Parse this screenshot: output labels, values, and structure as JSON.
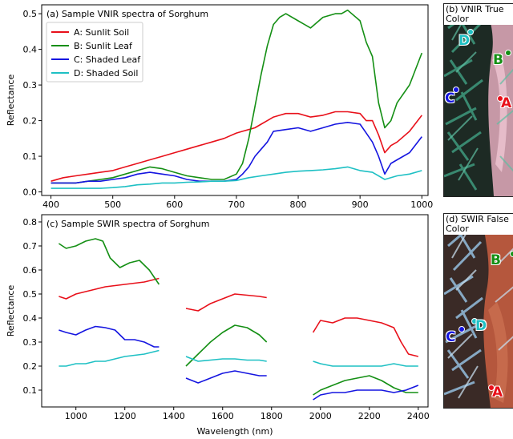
{
  "colors": {
    "A": "#e8101a",
    "B": "#148f14",
    "C": "#1515e0",
    "D": "#1ec0c4"
  },
  "chart_data": [
    {
      "type": "line",
      "panel": "a",
      "title": "(a) Sample VNIR spectra of Sorghum",
      "xlabel": "",
      "ylabel": "Reflectance",
      "xlim": [
        385,
        1010
      ],
      "ylim": [
        -0.01,
        0.525
      ],
      "xticks": [
        400,
        500,
        600,
        700,
        800,
        900,
        1000
      ],
      "yticks": [
        0.0,
        0.1,
        0.2,
        0.3,
        0.4,
        0.5
      ],
      "legend": "top-left",
      "series": [
        {
          "key": "A",
          "name": "A: Sunlit Soil",
          "x": [
            400,
            420,
            440,
            460,
            480,
            500,
            520,
            540,
            560,
            580,
            600,
            620,
            640,
            660,
            680,
            700,
            710,
            720,
            730,
            740,
            750,
            760,
            770,
            780,
            790,
            800,
            820,
            840,
            860,
            880,
            900,
            910,
            920,
            930,
            940,
            950,
            960,
            980,
            1000
          ],
          "y": [
            0.03,
            0.04,
            0.045,
            0.05,
            0.055,
            0.06,
            0.07,
            0.08,
            0.09,
            0.1,
            0.11,
            0.12,
            0.13,
            0.14,
            0.15,
            0.165,
            0.17,
            0.175,
            0.18,
            0.19,
            0.2,
            0.21,
            0.215,
            0.22,
            0.22,
            0.22,
            0.21,
            0.215,
            0.225,
            0.225,
            0.22,
            0.2,
            0.2,
            0.16,
            0.11,
            0.13,
            0.14,
            0.17,
            0.215
          ]
        },
        {
          "key": "B",
          "name": "B: Sunlit Leaf",
          "x": [
            400,
            420,
            440,
            460,
            480,
            500,
            520,
            540,
            560,
            580,
            600,
            620,
            640,
            660,
            680,
            700,
            710,
            720,
            730,
            740,
            750,
            760,
            770,
            780,
            800,
            820,
            840,
            860,
            870,
            880,
            900,
            910,
            920,
            930,
            940,
            950,
            960,
            980,
            1000
          ],
          "y": [
            0.025,
            0.025,
            0.025,
            0.03,
            0.035,
            0.04,
            0.05,
            0.06,
            0.07,
            0.065,
            0.055,
            0.045,
            0.04,
            0.035,
            0.035,
            0.05,
            0.08,
            0.15,
            0.24,
            0.33,
            0.41,
            0.47,
            0.49,
            0.5,
            0.48,
            0.46,
            0.49,
            0.5,
            0.5,
            0.51,
            0.48,
            0.42,
            0.38,
            0.25,
            0.18,
            0.2,
            0.25,
            0.3,
            0.39
          ]
        },
        {
          "key": "C",
          "name": "C: Shaded Leaf",
          "x": [
            400,
            420,
            440,
            460,
            480,
            500,
            520,
            540,
            560,
            580,
            600,
            620,
            640,
            660,
            680,
            700,
            710,
            720,
            730,
            740,
            750,
            760,
            780,
            800,
            820,
            840,
            860,
            880,
            900,
            910,
            920,
            930,
            940,
            950,
            960,
            980,
            1000
          ],
          "y": [
            0.025,
            0.025,
            0.025,
            0.03,
            0.03,
            0.035,
            0.04,
            0.05,
            0.055,
            0.05,
            0.045,
            0.035,
            0.03,
            0.03,
            0.03,
            0.035,
            0.05,
            0.07,
            0.1,
            0.12,
            0.14,
            0.17,
            0.175,
            0.18,
            0.17,
            0.18,
            0.19,
            0.195,
            0.19,
            0.165,
            0.14,
            0.1,
            0.05,
            0.08,
            0.09,
            0.11,
            0.155
          ]
        },
        {
          "key": "D",
          "name": "D: Shaded Soil",
          "x": [
            400,
            420,
            440,
            460,
            480,
            500,
            520,
            540,
            560,
            580,
            600,
            620,
            640,
            660,
            680,
            700,
            720,
            740,
            760,
            780,
            800,
            820,
            840,
            860,
            880,
            900,
            920,
            940,
            960,
            980,
            1000
          ],
          "y": [
            0.01,
            0.01,
            0.01,
            0.01,
            0.01,
            0.012,
            0.015,
            0.02,
            0.022,
            0.025,
            0.025,
            0.027,
            0.028,
            0.03,
            0.03,
            0.032,
            0.04,
            0.045,
            0.05,
            0.055,
            0.058,
            0.06,
            0.062,
            0.065,
            0.07,
            0.06,
            0.055,
            0.035,
            0.045,
            0.05,
            0.06
          ]
        }
      ]
    },
    {
      "type": "line",
      "panel": "c",
      "title": "(c) Sample SWIR spectra of Sorghum",
      "xlabel": "Wavelength (nm)",
      "ylabel": "Reflectance",
      "xlim": [
        860,
        2440
      ],
      "ylim": [
        0.03,
        0.83
      ],
      "xticks": [
        1000,
        1200,
        1400,
        1600,
        1800,
        2000,
        2200,
        2400
      ],
      "yticks": [
        0.1,
        0.2,
        0.3,
        0.4,
        0.5,
        0.6,
        0.7,
        0.8
      ],
      "series": [
        {
          "key": "A",
          "name": "A: Sunlit Soil",
          "segments": [
            {
              "x": [
                930,
                960,
                1000,
                1040,
                1080,
                1120,
                1160,
                1200,
                1240,
                1280,
                1320,
                1340
              ],
              "y": [
                0.49,
                0.48,
                0.5,
                0.51,
                0.52,
                0.53,
                0.535,
                0.54,
                0.545,
                0.55,
                0.56,
                0.565
              ]
            },
            {
              "x": [
                1450,
                1500,
                1550,
                1600,
                1650,
                1700,
                1750,
                1780
              ],
              "y": [
                0.44,
                0.43,
                0.46,
                0.48,
                0.5,
                0.495,
                0.49,
                0.485
              ]
            },
            {
              "x": [
                1970,
                2000,
                2050,
                2100,
                2150,
                2200,
                2250,
                2300,
                2330,
                2360,
                2400
              ],
              "y": [
                0.34,
                0.39,
                0.38,
                0.4,
                0.4,
                0.39,
                0.38,
                0.36,
                0.3,
                0.25,
                0.24
              ]
            }
          ]
        },
        {
          "key": "B",
          "name": "B: Sunlit Leaf",
          "segments": [
            {
              "x": [
                930,
                960,
                1000,
                1040,
                1080,
                1110,
                1140,
                1180,
                1220,
                1260,
                1300,
                1340
              ],
              "y": [
                0.71,
                0.69,
                0.7,
                0.72,
                0.73,
                0.72,
                0.65,
                0.61,
                0.63,
                0.64,
                0.6,
                0.54
              ]
            },
            {
              "x": [
                1450,
                1500,
                1550,
                1600,
                1650,
                1700,
                1750,
                1780
              ],
              "y": [
                0.2,
                0.25,
                0.3,
                0.34,
                0.37,
                0.36,
                0.33,
                0.3
              ]
            },
            {
              "x": [
                1970,
                2000,
                2050,
                2100,
                2150,
                2200,
                2250,
                2300,
                2350,
                2400
              ],
              "y": [
                0.08,
                0.1,
                0.12,
                0.14,
                0.15,
                0.16,
                0.14,
                0.11,
                0.09,
                0.09
              ]
            }
          ]
        },
        {
          "key": "C",
          "name": "C: Shaded Leaf",
          "segments": [
            {
              "x": [
                930,
                960,
                1000,
                1040,
                1080,
                1120,
                1160,
                1200,
                1240,
                1280,
                1320,
                1340
              ],
              "y": [
                0.35,
                0.34,
                0.33,
                0.35,
                0.365,
                0.36,
                0.35,
                0.31,
                0.31,
                0.3,
                0.28,
                0.28
              ]
            },
            {
              "x": [
                1450,
                1500,
                1550,
                1600,
                1650,
                1700,
                1750,
                1780
              ],
              "y": [
                0.15,
                0.13,
                0.15,
                0.17,
                0.18,
                0.17,
                0.16,
                0.16
              ]
            },
            {
              "x": [
                1970,
                2000,
                2050,
                2100,
                2150,
                2200,
                2250,
                2300,
                2350,
                2400
              ],
              "y": [
                0.06,
                0.08,
                0.09,
                0.09,
                0.1,
                0.1,
                0.1,
                0.09,
                0.1,
                0.12
              ]
            }
          ]
        },
        {
          "key": "D",
          "name": "D: Shaded Soil",
          "segments": [
            {
              "x": [
                930,
                960,
                1000,
                1040,
                1080,
                1120,
                1160,
                1200,
                1240,
                1280,
                1320,
                1340
              ],
              "y": [
                0.2,
                0.2,
                0.21,
                0.21,
                0.22,
                0.22,
                0.23,
                0.24,
                0.245,
                0.25,
                0.26,
                0.265
              ]
            },
            {
              "x": [
                1450,
                1500,
                1550,
                1600,
                1650,
                1700,
                1750,
                1780
              ],
              "y": [
                0.24,
                0.22,
                0.225,
                0.23,
                0.23,
                0.225,
                0.225,
                0.22
              ]
            },
            {
              "x": [
                1970,
                2000,
                2050,
                2100,
                2150,
                2200,
                2250,
                2300,
                2350,
                2400
              ],
              "y": [
                0.22,
                0.21,
                0.2,
                0.2,
                0.2,
                0.2,
                0.2,
                0.21,
                0.2,
                0.2
              ]
            }
          ]
        }
      ]
    }
  ],
  "images": [
    {
      "panel": "b",
      "title": "(b) VNIR True Color",
      "points": [
        {
          "label": "D",
          "color_key": "D"
        },
        {
          "label": "B",
          "color_key": "B"
        },
        {
          "label": "C",
          "color_key": "C"
        },
        {
          "label": "A",
          "color_key": "A"
        }
      ]
    },
    {
      "panel": "d",
      "title": "(d) SWIR False Color",
      "points": [
        {
          "label": "B",
          "color_key": "B"
        },
        {
          "label": "C",
          "color_key": "C"
        },
        {
          "label": "D",
          "color_key": "D"
        },
        {
          "label": "A",
          "color_key": "A"
        }
      ]
    }
  ]
}
